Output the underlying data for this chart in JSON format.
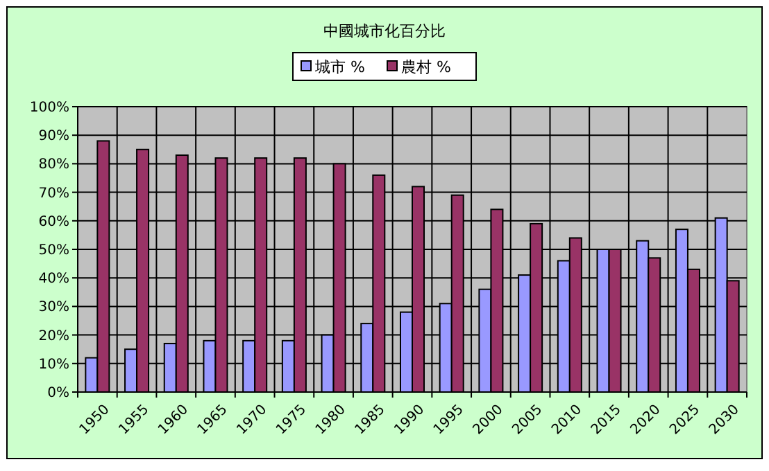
{
  "chart_data": {
    "type": "bar",
    "title": "中國城市化百分比",
    "categories": [
      "1950",
      "1955",
      "1960",
      "1965",
      "1970",
      "1975",
      "1980",
      "1985",
      "1990",
      "1995",
      "2000",
      "2005",
      "2010",
      "2015",
      "2020",
      "2025",
      "2030"
    ],
    "series": [
      {
        "name": "城市 %",
        "color": "#9999ff",
        "values": [
          12,
          15,
          17,
          18,
          18,
          18,
          20,
          24,
          28,
          31,
          36,
          41,
          46,
          50,
          53,
          57,
          61
        ]
      },
      {
        "name": "農村 %",
        "color": "#993366",
        "values": [
          88,
          85,
          83,
          82,
          82,
          82,
          80,
          76,
          72,
          69,
          64,
          59,
          54,
          50,
          47,
          43,
          39
        ]
      }
    ],
    "ylim": [
      0,
      100
    ],
    "yticks": [
      {
        "value": 0,
        "label": "0%"
      },
      {
        "value": 10,
        "label": "10%"
      },
      {
        "value": 20,
        "label": "20%"
      },
      {
        "value": 30,
        "label": "30%"
      },
      {
        "value": 40,
        "label": "40%"
      },
      {
        "value": 50,
        "label": "50%"
      },
      {
        "value": 60,
        "label": "60%"
      },
      {
        "value": 70,
        "label": "70%"
      },
      {
        "value": 80,
        "label": "80%"
      },
      {
        "value": 90,
        "label": "90%"
      },
      {
        "value": 100,
        "label": "100%"
      }
    ],
    "grid": true,
    "legend": "top"
  }
}
